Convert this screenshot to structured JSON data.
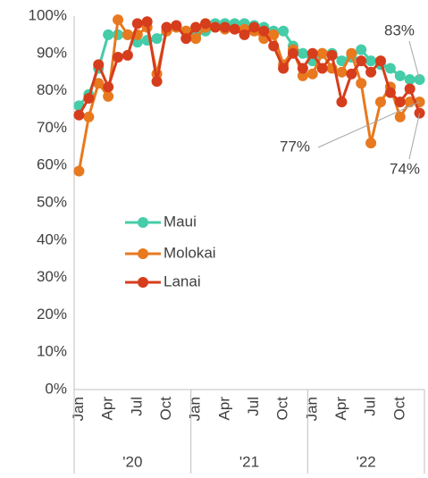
{
  "chart_data": {
    "type": "line",
    "categories": [
      "Jan",
      null,
      null,
      "Apr",
      null,
      null,
      "Jul",
      null,
      null,
      "Oct",
      null,
      null,
      "Jan",
      null,
      null,
      "Apr",
      null,
      null,
      "Jul",
      null,
      null,
      "Oct",
      null,
      null,
      "Jan",
      null,
      null,
      "Apr",
      null,
      null,
      "Jul",
      null,
      null,
      "Oct",
      null,
      null
    ],
    "category_groups": [
      "'20",
      "'21",
      "'22"
    ],
    "series": [
      {
        "name": "Maui",
        "color": "#45cca8",
        "values": [
          76,
          79,
          86,
          95,
          95,
          95,
          93,
          93.5,
          94,
          96,
          97,
          96,
          95,
          96,
          98,
          98,
          98,
          98,
          97.5,
          97,
          96,
          96,
          92,
          90,
          88,
          90,
          90,
          88,
          89,
          91,
          88,
          87,
          86,
          84,
          83,
          83
        ],
        "value_labels": [
          null,
          null,
          null,
          null,
          null,
          null,
          null,
          null,
          null,
          null,
          null,
          null,
          null,
          null,
          null,
          null,
          null,
          null,
          null,
          null,
          null,
          null,
          null,
          null,
          null,
          null,
          null,
          null,
          null,
          null,
          null,
          null,
          null,
          null,
          null,
          "83%"
        ]
      },
      {
        "name": "Molokai",
        "color": "#e8791f",
        "values": [
          58.5,
          73,
          82,
          78.5,
          99,
          95,
          95,
          97,
          84.5,
          96,
          97,
          96,
          94,
          97,
          97,
          96.5,
          96.5,
          96.5,
          96,
          94,
          95,
          87,
          91,
          84,
          84.5,
          90,
          86,
          85,
          90,
          82,
          66,
          77,
          81,
          73,
          77,
          77
        ],
        "value_labels": [
          null,
          null,
          null,
          null,
          null,
          null,
          null,
          null,
          null,
          null,
          null,
          null,
          null,
          null,
          null,
          null,
          null,
          null,
          null,
          null,
          null,
          null,
          null,
          null,
          null,
          null,
          null,
          null,
          null,
          null,
          null,
          null,
          null,
          null,
          null,
          "77%"
        ]
      },
      {
        "name": "Lanai",
        "color": "#d63d1c",
        "values": [
          73.5,
          78,
          87,
          81,
          89,
          89.5,
          98,
          98.5,
          82.5,
          97,
          97.5,
          94,
          97,
          98,
          97,
          97,
          96.5,
          95,
          97,
          96,
          92,
          86,
          90,
          86,
          90,
          86,
          89.5,
          77,
          84.5,
          88,
          85,
          88,
          79.5,
          77,
          80.5,
          74
        ],
        "value_labels": [
          null,
          null,
          null,
          null,
          null,
          null,
          null,
          null,
          null,
          null,
          null,
          null,
          null,
          null,
          null,
          null,
          null,
          null,
          null,
          null,
          null,
          null,
          null,
          null,
          null,
          null,
          null,
          null,
          null,
          null,
          null,
          null,
          null,
          null,
          null,
          "74%"
        ]
      }
    ],
    "ylim": [
      0,
      100
    ],
    "yticks": [
      {
        "value": 0,
        "label": "0%"
      },
      {
        "value": 10,
        "label": "10%"
      },
      {
        "value": 20,
        "label": "20%"
      },
      {
        "value": 30,
        "label": "30%"
      },
      {
        "value": 40,
        "label": "40%"
      },
      {
        "value": 50,
        "label": "50%"
      },
      {
        "value": 60,
        "label": "60%"
      },
      {
        "value": 70,
        "label": "70%"
      },
      {
        "value": 80,
        "label": "80%"
      },
      {
        "value": 90,
        "label": "90%"
      },
      {
        "value": 100,
        "label": "100%"
      }
    ],
    "grid": false,
    "legend": "left"
  }
}
